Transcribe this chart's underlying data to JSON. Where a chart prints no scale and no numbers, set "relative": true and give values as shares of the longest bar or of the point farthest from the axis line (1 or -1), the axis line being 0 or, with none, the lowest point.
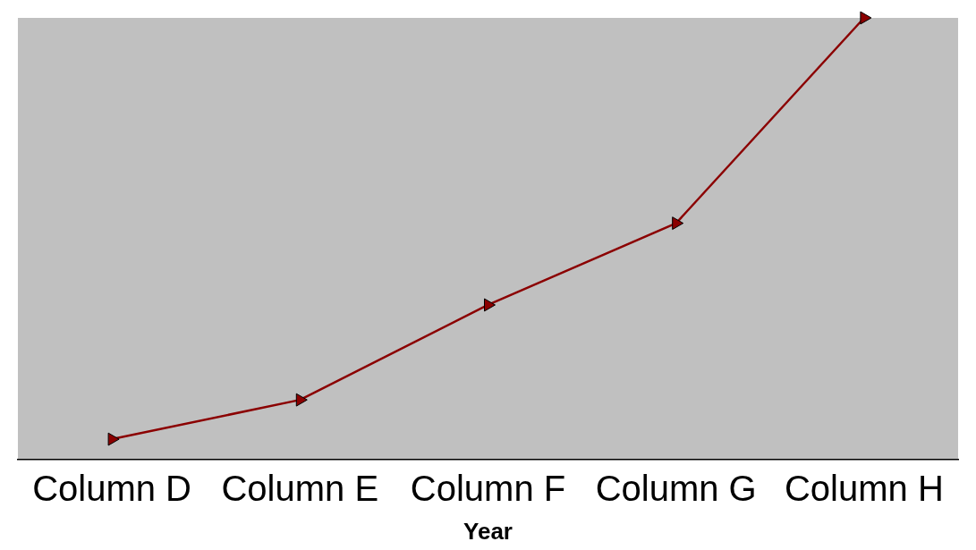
{
  "chart_data": {
    "type": "line",
    "xlabel": "Year",
    "relative": true,
    "categories": [
      "Column D",
      "Column E",
      "Column F",
      "Column G",
      "Column H"
    ],
    "series": [
      {
        "color": "#8b0000",
        "values": [
          0.046,
          0.135,
          0.35,
          0.535,
          1
        ]
      }
    ],
    "marker": "triangle",
    "line_style": "solid",
    "grid": false,
    "legend": false
  }
}
